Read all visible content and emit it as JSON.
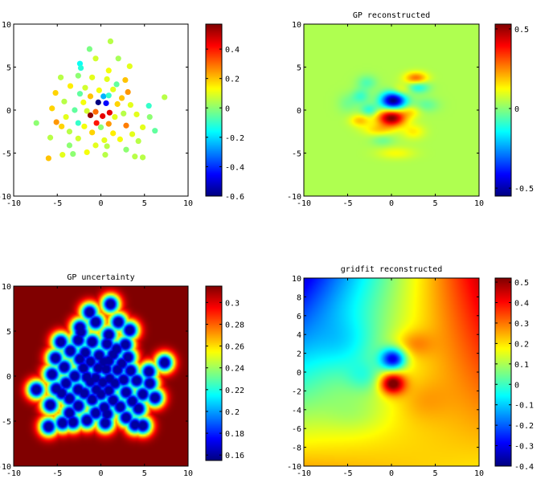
{
  "chart_data": [
    {
      "type": "scatter",
      "title": "",
      "xlim": [
        -10,
        10
      ],
      "ylim": [
        -10,
        10
      ],
      "xticks": [
        "-10",
        "-5",
        "0",
        "5",
        "10"
      ],
      "yticks": [
        "10",
        "5",
        "0",
        "-5",
        "-10"
      ],
      "colorbar": {
        "range": [
          -0.6,
          0.57
        ],
        "ticks": [
          "0.4",
          "0.2",
          "0",
          "-0.2",
          "-0.4",
          "-0.6"
        ]
      },
      "colormap": "jet",
      "points": [
        {
          "x": 1.1,
          "y": 8.0,
          "v": 0.05
        },
        {
          "x": -1.3,
          "y": 7.1,
          "v": -0.02
        },
        {
          "x": 2.0,
          "y": 6.0,
          "v": 0.03
        },
        {
          "x": -0.6,
          "y": 6.0,
          "v": 0.08
        },
        {
          "x": -2.4,
          "y": 5.4,
          "v": -0.15
        },
        {
          "x": -2.3,
          "y": 4.9,
          "v": -0.12
        },
        {
          "x": 3.3,
          "y": 5.1,
          "v": 0.1
        },
        {
          "x": 0.9,
          "y": 4.6,
          "v": 0.12
        },
        {
          "x": -4.6,
          "y": 3.8,
          "v": 0.05
        },
        {
          "x": -2.6,
          "y": 4.0,
          "v": 0.0
        },
        {
          "x": -1.0,
          "y": 3.8,
          "v": 0.1
        },
        {
          "x": 0.7,
          "y": 3.6,
          "v": 0.1
        },
        {
          "x": 2.8,
          "y": 3.5,
          "v": 0.2
        },
        {
          "x": 1.8,
          "y": 3.0,
          "v": -0.05
        },
        {
          "x": -3.5,
          "y": 2.8,
          "v": 0.15
        },
        {
          "x": -1.8,
          "y": 2.6,
          "v": 0.08
        },
        {
          "x": -0.2,
          "y": 2.3,
          "v": 0.12
        },
        {
          "x": 1.4,
          "y": 2.4,
          "v": 0.1
        },
        {
          "x": 3.1,
          "y": 2.1,
          "v": 0.25
        },
        {
          "x": -5.2,
          "y": 2.0,
          "v": 0.18
        },
        {
          "x": -2.4,
          "y": 1.9,
          "v": -0.05
        },
        {
          "x": -1.2,
          "y": 1.6,
          "v": 0.2
        },
        {
          "x": 0.3,
          "y": 1.6,
          "v": -0.25
        },
        {
          "x": 0.9,
          "y": 1.7,
          "v": -0.1
        },
        {
          "x": 2.4,
          "y": 1.4,
          "v": 0.2
        },
        {
          "x": 7.3,
          "y": 1.5,
          "v": 0.05
        },
        {
          "x": -4.2,
          "y": 1.0,
          "v": 0.05
        },
        {
          "x": -2.0,
          "y": 0.9,
          "v": 0.12
        },
        {
          "x": -0.3,
          "y": 0.9,
          "v": -0.6
        },
        {
          "x": 0.6,
          "y": 0.8,
          "v": -0.45
        },
        {
          "x": 1.9,
          "y": 0.7,
          "v": 0.18
        },
        {
          "x": 3.4,
          "y": 0.6,
          "v": 0.1
        },
        {
          "x": 5.5,
          "y": 0.5,
          "v": -0.1
        },
        {
          "x": -5.6,
          "y": 0.2,
          "v": 0.18
        },
        {
          "x": -3.0,
          "y": 0.0,
          "v": -0.05
        },
        {
          "x": -1.6,
          "y": -0.1,
          "v": 0.08
        },
        {
          "x": -0.6,
          "y": -0.2,
          "v": 0.3
        },
        {
          "x": 1.0,
          "y": -0.3,
          "v": 0.45
        },
        {
          "x": 2.6,
          "y": -0.4,
          "v": 0.05
        },
        {
          "x": 4.1,
          "y": -0.5,
          "v": 0.1
        },
        {
          "x": -4.0,
          "y": -0.8,
          "v": 0.1
        },
        {
          "x": -1.2,
          "y": -0.6,
          "v": 0.55
        },
        {
          "x": 0.2,
          "y": -0.7,
          "v": 0.45
        },
        {
          "x": 1.6,
          "y": -0.8,
          "v": 0.1
        },
        {
          "x": 5.6,
          "y": -0.8,
          "v": 0.0
        },
        {
          "x": -7.4,
          "y": -1.5,
          "v": 0.0
        },
        {
          "x": -5.1,
          "y": -1.4,
          "v": 0.25
        },
        {
          "x": -2.6,
          "y": -1.5,
          "v": -0.1
        },
        {
          "x": -0.5,
          "y": -1.5,
          "v": 0.4
        },
        {
          "x": 0.9,
          "y": -1.6,
          "v": 0.25
        },
        {
          "x": 2.9,
          "y": -1.8,
          "v": 0.28
        },
        {
          "x": -4.5,
          "y": -1.9,
          "v": 0.18
        },
        {
          "x": -1.9,
          "y": -1.9,
          "v": 0.12
        },
        {
          "x": 0.0,
          "y": -2.0,
          "v": 0.0
        },
        {
          "x": 4.8,
          "y": -2.0,
          "v": 0.1
        },
        {
          "x": -3.6,
          "y": -2.5,
          "v": 0.05
        },
        {
          "x": -1.0,
          "y": -2.6,
          "v": 0.18
        },
        {
          "x": 1.4,
          "y": -2.7,
          "v": 0.15
        },
        {
          "x": 3.6,
          "y": -2.8,
          "v": 0.1
        },
        {
          "x": 6.2,
          "y": -2.4,
          "v": -0.05
        },
        {
          "x": -5.8,
          "y": -3.2,
          "v": 0.05
        },
        {
          "x": -2.6,
          "y": -3.3,
          "v": 0.08
        },
        {
          "x": 0.4,
          "y": -3.5,
          "v": 0.1
        },
        {
          "x": 2.2,
          "y": -3.4,
          "v": 0.12
        },
        {
          "x": 4.3,
          "y": -3.6,
          "v": 0.05
        },
        {
          "x": -3.6,
          "y": -4.1,
          "v": 0.0
        },
        {
          "x": -0.6,
          "y": -4.1,
          "v": 0.1
        },
        {
          "x": 0.7,
          "y": -4.2,
          "v": 0.05
        },
        {
          "x": 2.9,
          "y": -4.6,
          "v": 0.0
        },
        {
          "x": -1.6,
          "y": -4.9,
          "v": 0.12
        },
        {
          "x": -3.2,
          "y": -5.1,
          "v": 0.0
        },
        {
          "x": 0.5,
          "y": -5.2,
          "v": 0.05
        },
        {
          "x": 3.9,
          "y": -5.4,
          "v": 0.05
        },
        {
          "x": -6.0,
          "y": -5.6,
          "v": 0.2
        },
        {
          "x": 4.8,
          "y": -5.5,
          "v": 0.05
        },
        {
          "x": -4.4,
          "y": -5.2,
          "v": 0.1
        }
      ]
    },
    {
      "type": "heatmap",
      "title": "GP reconstructed",
      "xlim": [
        -10,
        10
      ],
      "ylim": [
        -10,
        10
      ],
      "xticks": [
        "-10",
        "-5",
        "0",
        "5",
        "10"
      ],
      "yticks": [
        "10",
        "5",
        "0",
        "-5",
        "-10"
      ],
      "colorbar": {
        "range": [
          -0.55,
          0.53
        ],
        "ticks": [
          "0.5",
          "0",
          "-0.5"
        ]
      },
      "colormap": "jet",
      "baseline": 0.04,
      "features": [
        {
          "x": 0.2,
          "y": 1.1,
          "amp": -0.6,
          "sx": 1.0,
          "sy": 0.7
        },
        {
          "x": 0.0,
          "y": -0.9,
          "amp": 0.5,
          "sx": 1.1,
          "sy": 0.7
        },
        {
          "x": 2.8,
          "y": 3.7,
          "amp": 0.25,
          "sx": 0.9,
          "sy": 0.5
        },
        {
          "x": 3.0,
          "y": 2.7,
          "amp": -0.18,
          "sx": 0.9,
          "sy": 0.5
        },
        {
          "x": -2.5,
          "y": 0.0,
          "amp": -0.15,
          "sx": 0.7,
          "sy": 0.5
        },
        {
          "x": -3.5,
          "y": 1.6,
          "amp": -0.12,
          "sx": 0.7,
          "sy": 0.6
        },
        {
          "x": -2.8,
          "y": 3.2,
          "amp": -0.1,
          "sx": 0.8,
          "sy": 0.6
        },
        {
          "x": -3.6,
          "y": -1.2,
          "amp": 0.15,
          "sx": 0.8,
          "sy": 0.5
        },
        {
          "x": 2.2,
          "y": -0.2,
          "amp": 0.1,
          "sx": 0.8,
          "sy": 0.5
        },
        {
          "x": 4.0,
          "y": 0.6,
          "amp": -0.08,
          "sx": 1.0,
          "sy": 0.6
        },
        {
          "x": -1.5,
          "y": -2.3,
          "amp": 0.12,
          "sx": 1.2,
          "sy": 0.5
        },
        {
          "x": 2.5,
          "y": -2.5,
          "amp": 0.1,
          "sx": 0.9,
          "sy": 0.6
        },
        {
          "x": 0.5,
          "y": -5.0,
          "amp": 0.08,
          "sx": 1.5,
          "sy": 0.5
        },
        {
          "x": -5.0,
          "y": 0.8,
          "amp": -0.06,
          "sx": 0.8,
          "sy": 0.8
        },
        {
          "x": 1.2,
          "y": 2.3,
          "amp": 0.12,
          "sx": 0.8,
          "sy": 0.5
        },
        {
          "x": -1.0,
          "y": -3.5,
          "amp": -0.07,
          "sx": 0.9,
          "sy": 0.5
        }
      ]
    },
    {
      "type": "heatmap",
      "title": "GP uncertainty",
      "xlim": [
        -10,
        10
      ],
      "ylim": [
        -10,
        10
      ],
      "xticks": [
        "-10",
        "-5",
        "0",
        "5",
        "10"
      ],
      "yticks": [
        "10",
        "5",
        "0",
        "-5",
        "-10"
      ],
      "colorbar": {
        "range": [
          0.155,
          0.315
        ],
        "ticks": [
          "0.3",
          "0.28",
          "0.26",
          "0.24",
          "0.22",
          "0.2",
          "0.18",
          "0.16"
        ]
      },
      "colormap": "jet",
      "value_far": 0.315,
      "value_near": 0.16
    },
    {
      "type": "heatmap",
      "title": "gridfit reconstructed",
      "xlim": [
        -10,
        10
      ],
      "ylim": [
        -10,
        10
      ],
      "xticks": [
        "-10",
        "-5",
        "0",
        "5",
        "10"
      ],
      "yticks": [
        "10",
        "8",
        "6",
        "4",
        "2",
        "0",
        "-2",
        "-4",
        "-6",
        "-8",
        "-10"
      ],
      "colorbar": {
        "range": [
          -0.4,
          0.52
        ],
        "ticks": [
          "0.5",
          "0.4",
          "0.3",
          "0.2",
          "0.1",
          "0",
          "-0.1",
          "-0.2",
          "-0.3",
          "-0.4"
        ]
      },
      "colormap": "jet",
      "corners": {
        "top_left": -0.32,
        "top_right": 0.45,
        "bottom_left": 0.25,
        "bottom_right": 0.2
      },
      "features": [
        {
          "x": 0.2,
          "y": 1.4,
          "amp": -0.45,
          "sx": 1.0,
          "sy": 0.8
        },
        {
          "x": 0.1,
          "y": -1.2,
          "amp": 0.4,
          "sx": 1.0,
          "sy": 0.8
        },
        {
          "x": -3.0,
          "y": -0.5,
          "amp": -0.1,
          "sx": 1.5,
          "sy": 1.2
        },
        {
          "x": 2.5,
          "y": 3.0,
          "amp": 0.1,
          "sx": 1.5,
          "sy": 1.0
        },
        {
          "x": -5.0,
          "y": 3.0,
          "amp": -0.08,
          "sx": 2.5,
          "sy": 2.0
        },
        {
          "x": 3.5,
          "y": -3.0,
          "amp": 0.05,
          "sx": 2.0,
          "sy": 1.5
        },
        {
          "x": -4.0,
          "y": -4.5,
          "amp": -0.05,
          "sx": 2.5,
          "sy": 1.5
        }
      ]
    }
  ]
}
